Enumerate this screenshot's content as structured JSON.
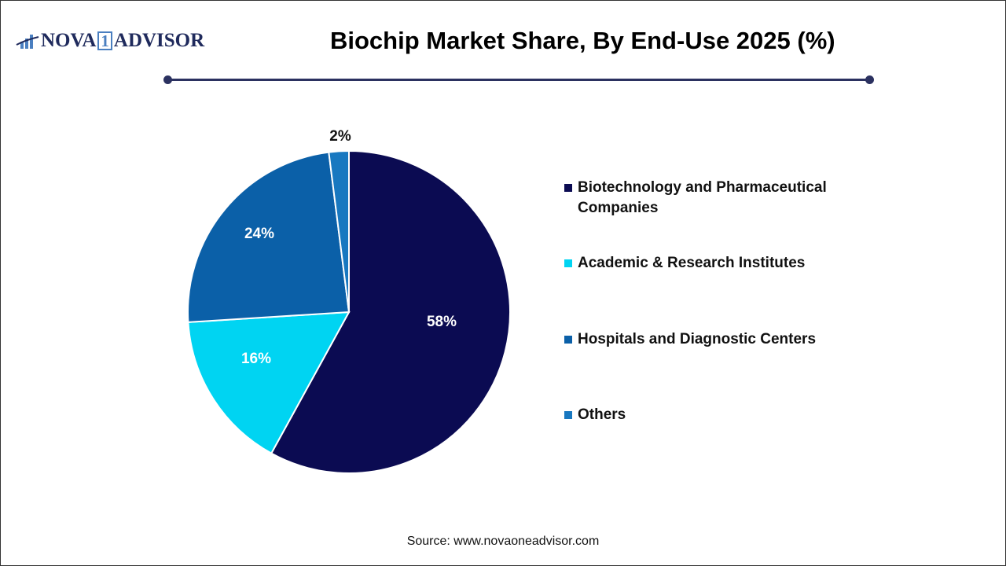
{
  "logo": {
    "text_left": "NOVA",
    "text_one": "1",
    "text_right": "ADVISOR"
  },
  "chart_data": {
    "type": "pie",
    "title": "Biochip Market Share, By End-Use 2025 (%)",
    "categories": [
      "Biotechnology and Pharmaceutical Companies",
      "Academic & Research Institutes",
      "Hospitals and Diagnostic Centers",
      "Others"
    ],
    "values": [
      58,
      16,
      24,
      2
    ],
    "labels": [
      "58%",
      "16%",
      "24%",
      "2%"
    ],
    "colors": [
      "#0b0b52",
      "#00d4f2",
      "#0b60a8",
      "#1878c0"
    ],
    "legend_position": "right"
  },
  "source": "Source: www.novaoneadvisor.com"
}
